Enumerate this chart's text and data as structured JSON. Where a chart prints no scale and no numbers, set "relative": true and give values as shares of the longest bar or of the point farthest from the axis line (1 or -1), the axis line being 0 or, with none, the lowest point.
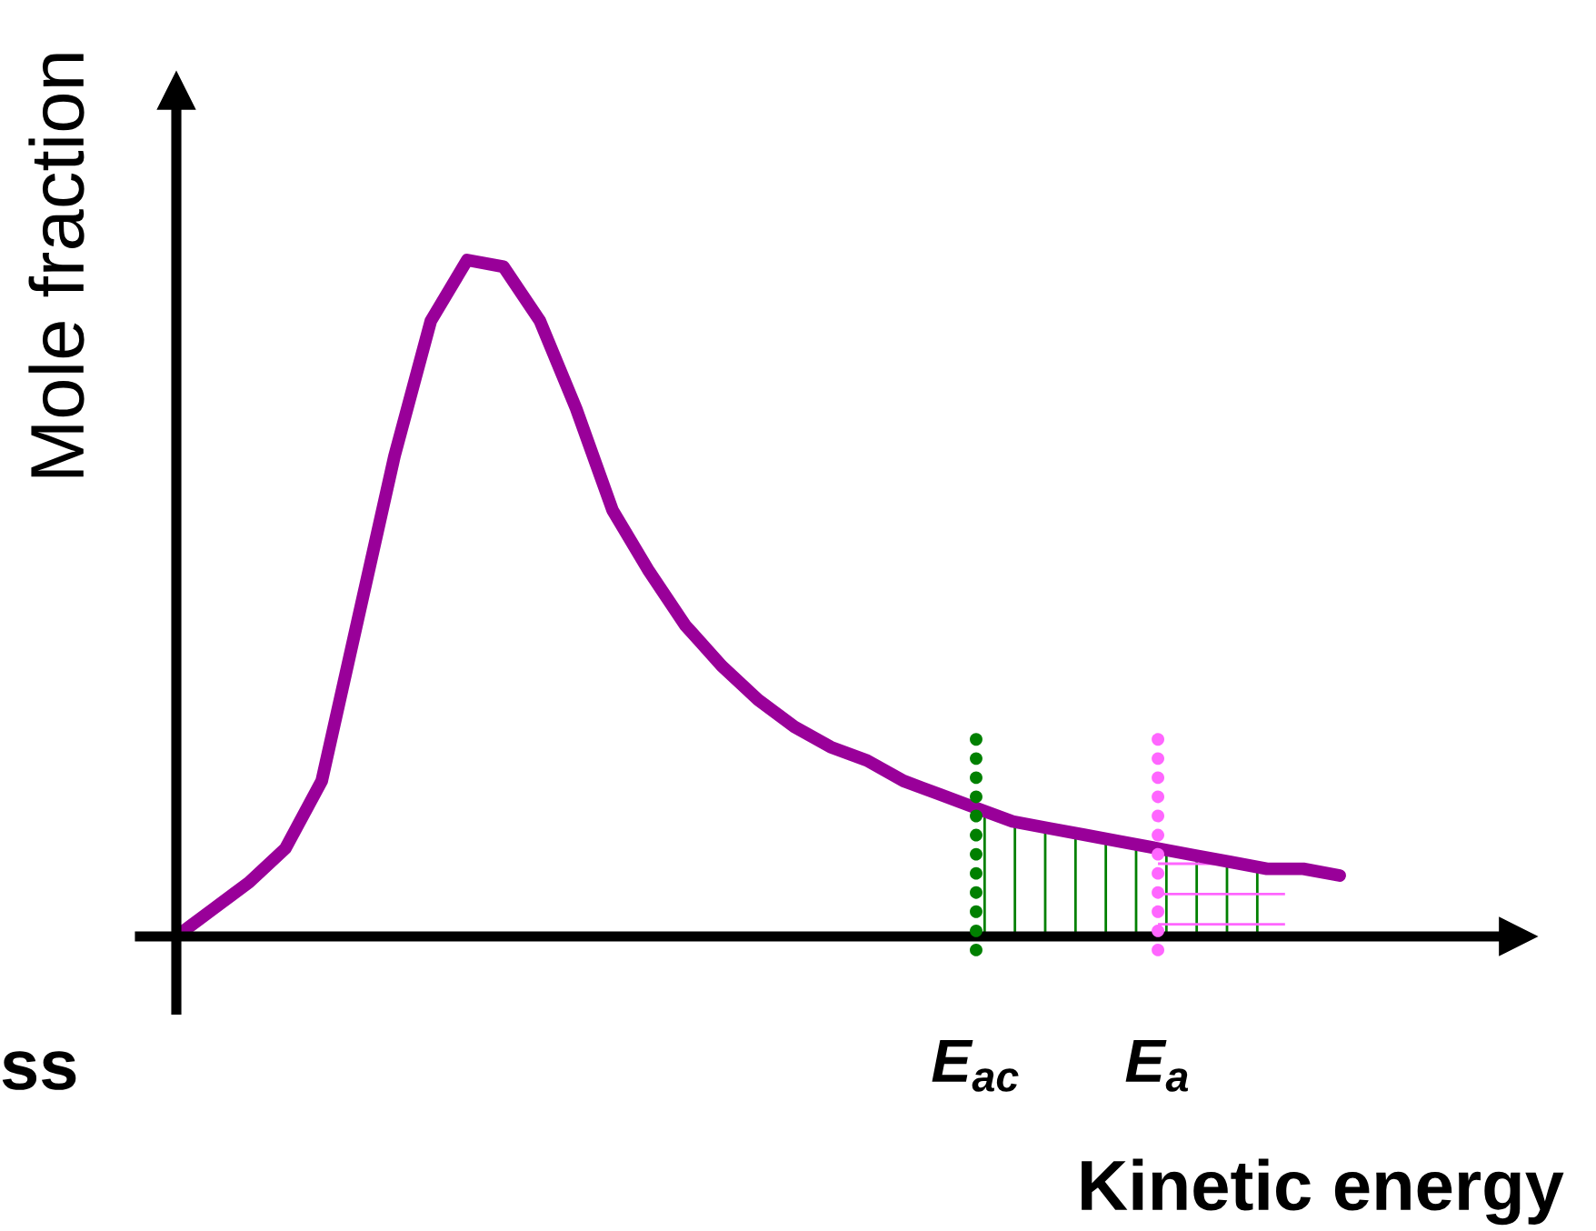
{
  "chart_data": {
    "type": "line",
    "relative": true,
    "ylabel": "Mole fraction",
    "xlabel": "Kinetic energy",
    "categories": [
      null,
      null,
      null,
      null,
      null,
      null,
      null,
      null,
      null,
      null,
      null,
      null,
      null,
      null,
      null,
      null,
      null,
      null,
      null,
      null,
      null,
      null,
      null,
      null,
      null,
      null,
      null,
      null,
      null,
      null,
      null,
      null,
      null
    ],
    "series": [
      {
        "color": "#990099",
        "values": [
          0,
          0.04,
          0.08,
          0.13,
          0.23,
          0.47,
          0.71,
          0.91,
          1.0,
          0.99,
          0.91,
          0.78,
          0.63,
          0.54,
          0.46,
          0.4,
          0.35,
          0.31,
          0.28,
          0.26,
          0.23,
          0.21,
          0.19,
          0.17,
          0.16,
          0.15,
          0.14,
          0.13,
          0.12,
          0.11,
          0.1,
          0.1,
          0.09
        ]
      }
    ],
    "annotations": [
      "E$_{ac}$",
      "E$_{a}$",
      "ss"
    ],
    "legend": false,
    "marker": "none",
    "line_style": "solid"
  }
}
